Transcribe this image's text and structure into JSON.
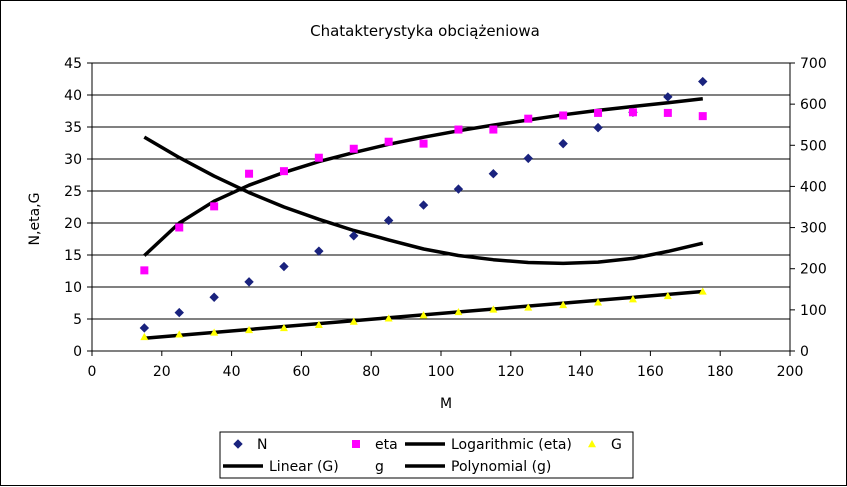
{
  "chart_data": {
    "type": "scatter",
    "title": "Chatakterystyka obciążeniowa",
    "xlabel": "M",
    "ylabel": "N,eta,G",
    "xlim": [
      0,
      200
    ],
    "ylim": [
      0,
      45
    ],
    "y2lim": [
      0,
      700
    ],
    "x_ticks": [
      "0",
      "20",
      "40",
      "60",
      "80",
      "100",
      "120",
      "140",
      "160",
      "180",
      "200"
    ],
    "y_ticks": [
      "0",
      "5",
      "10",
      "15",
      "20",
      "25",
      "30",
      "35",
      "40",
      "45"
    ],
    "y2_ticks": [
      "0",
      "100",
      "200",
      "300",
      "400",
      "500",
      "600",
      "700"
    ],
    "grid": "horizontal",
    "legend_position": "bottom",
    "colors": {
      "N": "#1a237e",
      "eta": "#ff00ff",
      "G": "#ffff00",
      "trend": "#000000",
      "grid": "#000000"
    },
    "x": [
      15,
      25,
      35,
      45,
      55,
      65,
      75,
      85,
      95,
      105,
      115,
      125,
      135,
      145,
      155,
      165,
      175
    ],
    "series": [
      {
        "name": "N",
        "marker": "diamond",
        "axis": "left",
        "values": [
          3.6,
          6.0,
          8.4,
          10.8,
          13.2,
          15.6,
          18.0,
          20.4,
          22.8,
          25.3,
          27.7,
          30.1,
          32.4,
          34.9,
          37.3,
          39.7,
          42.1
        ]
      },
      {
        "name": "eta",
        "marker": "square",
        "axis": "left",
        "values": [
          12.6,
          19.3,
          22.6,
          27.7,
          28.1,
          30.2,
          31.6,
          32.7,
          32.4,
          34.6,
          34.6,
          36.3,
          36.8,
          37.2,
          37.3,
          37.2,
          36.7
        ]
      },
      {
        "name": "G",
        "marker": "triangle",
        "axis": "left",
        "values": [
          2.2,
          2.6,
          2.9,
          3.3,
          3.6,
          4.1,
          4.6,
          5.1,
          5.6,
          6.1,
          6.5,
          6.8,
          7.2,
          7.6,
          8.1,
          8.6,
          9.3
        ]
      },
      {
        "name": "g",
        "marker": "none",
        "axis": "right",
        "hidden_points": true,
        "values": [
          520,
          470,
          425,
          385,
          350,
          320,
          293,
          270,
          248,
          232,
          222,
          215,
          213,
          216,
          225,
          242,
          262
        ]
      }
    ],
    "trendlines": [
      {
        "name": "Logarithmic (eta)",
        "type": "logarithmic",
        "axis": "left",
        "x": [
          15,
          25,
          35,
          45,
          55,
          65,
          75,
          85,
          95,
          105,
          115,
          125,
          135,
          145,
          155,
          165,
          175
        ],
        "values": [
          14.9,
          20.0,
          23.4,
          25.9,
          27.9,
          29.6,
          31.0,
          32.3,
          33.4,
          34.4,
          35.3,
          36.1,
          36.9,
          37.6,
          38.2,
          38.8,
          39.4
        ]
      },
      {
        "name": "Linear (G)",
        "type": "linear",
        "axis": "left",
        "x": [
          15,
          175
        ],
        "values": [
          2.0,
          9.3
        ]
      },
      {
        "name": "Polynomial (g)",
        "type": "polynomial",
        "axis": "right",
        "x": [
          15,
          25,
          35,
          45,
          55,
          65,
          75,
          85,
          95,
          105,
          115,
          125,
          135,
          145,
          155,
          165,
          175
        ],
        "values": [
          520,
          470,
          425,
          385,
          350,
          320,
          293,
          270,
          248,
          232,
          222,
          215,
          213,
          216,
          225,
          242,
          262
        ]
      }
    ],
    "legend": {
      "rows": [
        [
          {
            "label": "N",
            "marker": "diamond"
          },
          {
            "label": "eta",
            "marker": "square"
          },
          {
            "label": "Logarithmic (eta)",
            "marker": "line"
          },
          {
            "label": "G",
            "marker": "triangle"
          }
        ],
        [
          {
            "label": "Linear (G)",
            "marker": "line"
          },
          {
            "label": "g",
            "marker": "none"
          },
          {
            "label": "Polynomial (g)",
            "marker": "line"
          }
        ]
      ]
    }
  }
}
